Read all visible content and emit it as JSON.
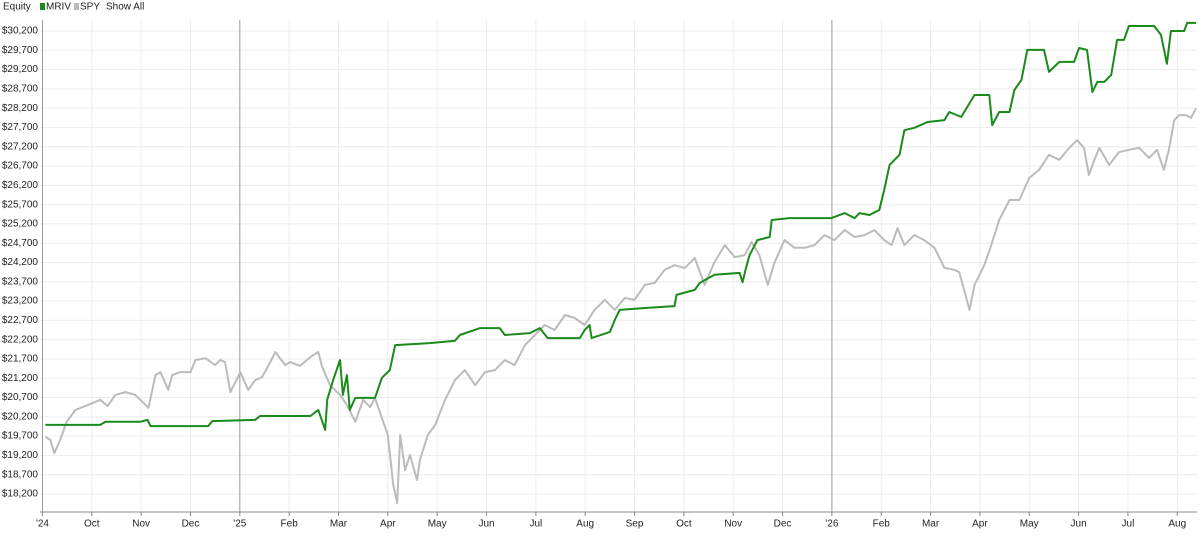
{
  "chart_data": {
    "type": "line",
    "legend_title": "Equity",
    "show_all_label": "Show All",
    "grid": true,
    "xlim": [
      -0.05,
      23.4
    ],
    "xticks": [
      {
        "value": 0,
        "label": "'24"
      },
      {
        "value": 1,
        "label": "Oct"
      },
      {
        "value": 2,
        "label": "Nov"
      },
      {
        "value": 3,
        "label": "Dec"
      },
      {
        "value": 4,
        "label": "'25"
      },
      {
        "value": 5,
        "label": "Feb"
      },
      {
        "value": 6,
        "label": "Mar"
      },
      {
        "value": 7,
        "label": "Apr"
      },
      {
        "value": 8,
        "label": "May"
      },
      {
        "value": 9,
        "label": "Jun"
      },
      {
        "value": 10,
        "label": "Jul"
      },
      {
        "value": 11,
        "label": "Aug"
      },
      {
        "value": 12,
        "label": "Sep"
      },
      {
        "value": 13,
        "label": "Oct"
      },
      {
        "value": 14,
        "label": "Nov"
      },
      {
        "value": 15,
        "label": "Dec"
      },
      {
        "value": 16,
        "label": "'26"
      },
      {
        "value": 17,
        "label": "Feb"
      },
      {
        "value": 18,
        "label": "Mar"
      },
      {
        "value": 19,
        "label": "Apr"
      },
      {
        "value": 20,
        "label": "May"
      },
      {
        "value": 21,
        "label": "Jun"
      },
      {
        "value": 22,
        "label": "Jul"
      },
      {
        "value": 23,
        "label": "Aug"
      }
    ],
    "ylim": [
      17733,
      30485
    ],
    "yticks": [
      {
        "value": 18200,
        "label": "$18,200"
      },
      {
        "value": 18700,
        "label": "$18,700"
      },
      {
        "value": 19200,
        "label": "$19,200"
      },
      {
        "value": 19700,
        "label": "$19,700"
      },
      {
        "value": 20200,
        "label": "$20,200"
      },
      {
        "value": 20700,
        "label": "$20,700"
      },
      {
        "value": 21200,
        "label": "$21,200"
      },
      {
        "value": 21700,
        "label": "$21,700"
      },
      {
        "value": 22200,
        "label": "$22,200"
      },
      {
        "value": 22700,
        "label": "$22,700"
      },
      {
        "value": 23200,
        "label": "$23,200"
      },
      {
        "value": 23700,
        "label": "$23,700"
      },
      {
        "value": 24200,
        "label": "$24,200"
      },
      {
        "value": 24700,
        "label": "$24,700"
      },
      {
        "value": 25200,
        "label": "$25,200"
      },
      {
        "value": 25700,
        "label": "$25,700"
      },
      {
        "value": 26200,
        "label": "$26,200"
      },
      {
        "value": 26700,
        "label": "$26,700"
      },
      {
        "value": 27200,
        "label": "$27,200"
      },
      {
        "value": 27700,
        "label": "$27,700"
      },
      {
        "value": 28200,
        "label": "$28,200"
      },
      {
        "value": 28700,
        "label": "$28,700"
      },
      {
        "value": 29200,
        "label": "$29,200"
      },
      {
        "value": 29700,
        "label": "$29,700"
      },
      {
        "value": 30200,
        "label": "$30,200"
      }
    ],
    "series": [
      {
        "name": "SPY",
        "color": "#bbbbbb",
        "x": [
          0.06,
          0.16,
          0.24,
          0.36,
          0.49,
          0.67,
          0.97,
          1.17,
          1.32,
          1.48,
          1.68,
          1.88,
          1.98,
          2.15,
          2.29,
          2.39,
          2.55,
          2.63,
          2.79,
          3.0,
          3.1,
          3.3,
          3.5,
          3.6,
          3.7,
          3.81,
          4.01,
          4.17,
          4.31,
          4.45,
          4.62,
          4.72,
          4.92,
          5.02,
          5.22,
          5.43,
          5.59,
          5.67,
          5.83,
          6.03,
          6.17,
          6.34,
          6.5,
          6.64,
          6.74,
          6.88,
          7.0,
          7.11,
          7.19,
          7.25,
          7.35,
          7.45,
          7.59,
          7.65,
          7.81,
          7.96,
          8.16,
          8.36,
          8.56,
          8.77,
          8.97,
          9.17,
          9.37,
          9.57,
          9.78,
          9.98,
          10.18,
          10.38,
          10.59,
          10.79,
          10.99,
          11.19,
          11.4,
          11.6,
          11.8,
          12.0,
          12.21,
          12.41,
          12.61,
          12.81,
          13.02,
          13.22,
          13.42,
          13.62,
          13.83,
          14.03,
          14.23,
          14.37,
          14.53,
          14.7,
          14.84,
          15.04,
          15.24,
          15.45,
          15.65,
          15.85,
          16.05,
          16.26,
          16.46,
          16.66,
          16.86,
          17.06,
          17.21,
          17.33,
          17.47,
          17.67,
          17.87,
          18.08,
          18.28,
          18.48,
          18.58,
          18.68,
          18.79,
          18.89,
          19.09,
          19.23,
          19.39,
          19.6,
          19.8,
          20.0,
          20.2,
          20.4,
          20.61,
          20.81,
          20.97,
          21.11,
          21.21,
          21.32,
          21.42,
          21.62,
          21.82,
          22.02,
          22.23,
          22.43,
          22.59,
          22.73,
          22.83,
          22.94,
          23.04,
          23.18,
          23.28,
          23.38
        ],
        "values": [
          19680,
          19600,
          19260,
          19600,
          20070,
          20380,
          20530,
          20640,
          20480,
          20770,
          20840,
          20770,
          20640,
          20430,
          21280,
          21360,
          20900,
          21280,
          21360,
          21360,
          21670,
          21720,
          21540,
          21670,
          21620,
          20840,
          21360,
          20900,
          21150,
          21230,
          21620,
          21880,
          21540,
          21620,
          21520,
          21750,
          21880,
          21490,
          21020,
          20770,
          20510,
          20070,
          20640,
          20450,
          20690,
          20170,
          19730,
          18430,
          17970,
          19730,
          18820,
          19210,
          18560,
          19080,
          19730,
          19990,
          20640,
          21150,
          21410,
          21020,
          21360,
          21410,
          21670,
          21540,
          22060,
          22320,
          22580,
          22450,
          22840,
          22760,
          22580,
          22970,
          23230,
          22970,
          23280,
          23230,
          23620,
          23670,
          24010,
          24130,
          24060,
          24320,
          23620,
          24210,
          24650,
          24340,
          24390,
          24730,
          24390,
          23620,
          24210,
          24780,
          24580,
          24580,
          24650,
          24910,
          24780,
          25040,
          24860,
          24910,
          25040,
          24780,
          24650,
          25090,
          24650,
          24910,
          24780,
          24580,
          24060,
          24010,
          23950,
          23490,
          22970,
          23620,
          24130,
          24650,
          25300,
          25820,
          25820,
          26390,
          26600,
          26990,
          26860,
          27170,
          27370,
          27170,
          26470,
          26860,
          27170,
          26730,
          27060,
          27120,
          27170,
          26910,
          27120,
          26600,
          27120,
          27890,
          28020,
          28020,
          27950,
          28200
        ]
      },
      {
        "name": "MRIV",
        "color": "#1a8a1a",
        "x": [
          0.06,
          1.17,
          1.28,
          1.98,
          2.13,
          2.19,
          3.36,
          3.44,
          4.31,
          4.41,
          5.43,
          5.59,
          5.73,
          5.77,
          5.89,
          6.03,
          6.09,
          6.17,
          6.23,
          6.34,
          6.74,
          6.88,
          7.04,
          7.15,
          7.85,
          8.36,
          8.46,
          8.87,
          9.27,
          9.37,
          9.88,
          10.08,
          10.24,
          10.89,
          10.99,
          11.09,
          11.13,
          11.5,
          11.6,
          11.7,
          12.21,
          12.81,
          12.85,
          13.22,
          13.32,
          13.62,
          14.13,
          14.19,
          14.25,
          14.33,
          14.49,
          14.74,
          14.78,
          15.14,
          15.99,
          16.26,
          16.46,
          16.56,
          16.76,
          16.96,
          17.06,
          17.17,
          17.37,
          17.47,
          17.67,
          17.94,
          18.28,
          18.38,
          18.62,
          18.89,
          19.19,
          19.25,
          19.39,
          19.6,
          19.7,
          19.84,
          19.96,
          20.3,
          20.4,
          20.61,
          20.91,
          21.01,
          21.17,
          21.28,
          21.38,
          21.52,
          21.66,
          21.78,
          21.92,
          22.02,
          22.53,
          22.67,
          22.79,
          22.87,
          23.14,
          23.2,
          23.38
        ],
        "values": [
          19990,
          19990,
          20070,
          20070,
          20120,
          19960,
          19960,
          20090,
          20120,
          20220,
          20220,
          20380,
          19860,
          20640,
          21150,
          21670,
          20770,
          21280,
          20380,
          20690,
          20690,
          21210,
          21410,
          22060,
          22110,
          22170,
          22320,
          22500,
          22500,
          22320,
          22370,
          22500,
          22240,
          22240,
          22450,
          22580,
          22240,
          22400,
          22710,
          22970,
          23020,
          23070,
          23360,
          23490,
          23670,
          23880,
          23930,
          23690,
          24010,
          24390,
          24780,
          24860,
          25300,
          25350,
          25350,
          25480,
          25350,
          25480,
          25430,
          25560,
          26080,
          26730,
          26990,
          27630,
          27690,
          27840,
          27890,
          28100,
          27970,
          28540,
          28540,
          27760,
          28100,
          28100,
          28670,
          28930,
          29710,
          29710,
          29140,
          29400,
          29400,
          29760,
          29710,
          28620,
          28880,
          28880,
          29060,
          29970,
          29970,
          30330,
          30330,
          30100,
          29350,
          30200,
          30200,
          30410,
          30410
        ]
      }
    ]
  }
}
